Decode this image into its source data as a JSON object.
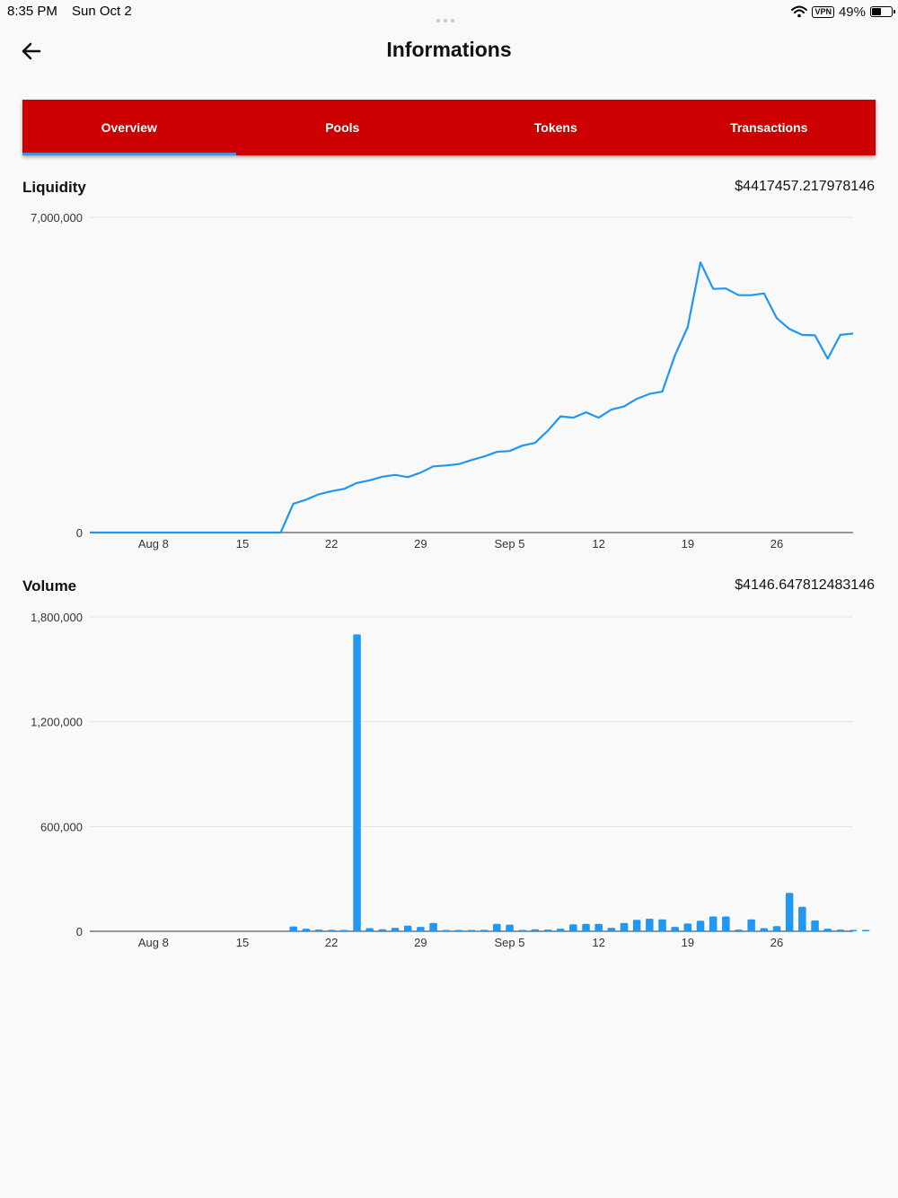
{
  "status_bar": {
    "time": "8:35 PM",
    "date": "Sun Oct 2",
    "vpn": "VPN",
    "battery": "49%",
    "battery_level": 0.49,
    "icons": [
      "wifi-icon",
      "vpn-icon",
      "battery-icon"
    ]
  },
  "header": {
    "title": "Informations",
    "back_icon": "arrow-left-icon"
  },
  "tabs": [
    {
      "label": "Overview",
      "active": true
    },
    {
      "label": "Pools",
      "active": false
    },
    {
      "label": "Tokens",
      "active": false
    },
    {
      "label": "Transactions",
      "active": false
    }
  ],
  "colors": {
    "tab_bar": "#cc0000",
    "tab_indicator": "#4a90d9",
    "series": "#2196f3"
  },
  "liquidity": {
    "title": "Liquidity",
    "value": "$4417457.217978146"
  },
  "volume": {
    "title": "Volume",
    "value": "$4146.647812483146"
  },
  "chart_data": [
    {
      "type": "line",
      "title": "Liquidity",
      "ylim": [
        0,
        7000000
      ],
      "y_ticks": [
        "0",
        "7,000,000"
      ],
      "y_tick_values": [
        0,
        7000000
      ],
      "x_ticks": [
        "Aug 8",
        "15",
        "22",
        "29",
        "Sep 5",
        "12",
        "19",
        "26"
      ],
      "x_tick_dates": [
        "2022-08-08",
        "2022-08-15",
        "2022-08-22",
        "2022-08-29",
        "2022-09-05",
        "2022-09-12",
        "2022-09-19",
        "2022-09-26"
      ],
      "x_range": [
        "2022-08-03",
        "2022-10-02"
      ],
      "grid": true,
      "points": [
        [
          "2022-08-03",
          0
        ],
        [
          "2022-08-18",
          0
        ],
        [
          "2022-08-19",
          640000
        ],
        [
          "2022-08-20",
          730000
        ],
        [
          "2022-08-21",
          850000
        ],
        [
          "2022-08-22",
          920000
        ],
        [
          "2022-08-23",
          970000
        ],
        [
          "2022-08-24",
          1100000
        ],
        [
          "2022-08-25",
          1160000
        ],
        [
          "2022-08-26",
          1240000
        ],
        [
          "2022-08-27",
          1280000
        ],
        [
          "2022-08-28",
          1230000
        ],
        [
          "2022-08-29",
          1330000
        ],
        [
          "2022-08-30",
          1470000
        ],
        [
          "2022-08-31",
          1490000
        ],
        [
          "2022-09-01",
          1520000
        ],
        [
          "2022-09-02",
          1610000
        ],
        [
          "2022-09-03",
          1690000
        ],
        [
          "2022-09-04",
          1790000
        ],
        [
          "2022-09-05",
          1810000
        ],
        [
          "2022-09-06",
          1930000
        ],
        [
          "2022-09-07",
          1990000
        ],
        [
          "2022-09-08",
          2260000
        ],
        [
          "2022-09-09",
          2580000
        ],
        [
          "2022-09-10",
          2550000
        ],
        [
          "2022-09-11",
          2670000
        ],
        [
          "2022-09-12",
          2550000
        ],
        [
          "2022-09-13",
          2730000
        ],
        [
          "2022-09-14",
          2800000
        ],
        [
          "2022-09-15",
          2970000
        ],
        [
          "2022-09-16",
          3080000
        ],
        [
          "2022-09-17",
          3130000
        ],
        [
          "2022-09-18",
          3940000
        ],
        [
          "2022-09-19",
          4560000
        ],
        [
          "2022-09-20",
          6000000
        ],
        [
          "2022-09-21",
          5410000
        ],
        [
          "2022-09-22",
          5420000
        ],
        [
          "2022-09-23",
          5270000
        ],
        [
          "2022-09-24",
          5270000
        ],
        [
          "2022-09-25",
          5310000
        ],
        [
          "2022-09-26",
          4760000
        ],
        [
          "2022-09-27",
          4520000
        ],
        [
          "2022-09-28",
          4390000
        ],
        [
          "2022-09-29",
          4380000
        ],
        [
          "2022-09-30",
          3860000
        ],
        [
          "2022-10-01",
          4390000
        ],
        [
          "2022-10-02",
          4420000
        ]
      ]
    },
    {
      "type": "bar",
      "title": "Volume",
      "ylim": [
        0,
        1800000
      ],
      "y_ticks": [
        "0",
        "600,000",
        "1,200,000",
        "1,800,000"
      ],
      "y_tick_values": [
        0,
        600000,
        1200000,
        1800000
      ],
      "x_ticks": [
        "Aug 8",
        "15",
        "22",
        "29",
        "Sep 5",
        "12",
        "19",
        "26"
      ],
      "x_tick_dates": [
        "2022-08-08",
        "2022-08-15",
        "2022-08-22",
        "2022-08-29",
        "2022-09-05",
        "2022-09-12",
        "2022-09-19",
        "2022-09-26"
      ],
      "x_range": [
        "2022-08-03",
        "2022-10-02"
      ],
      "grid": true,
      "bars": [
        [
          "2022-08-19",
          28000
        ],
        [
          "2022-08-20",
          15000
        ],
        [
          "2022-08-21",
          10000
        ],
        [
          "2022-08-22",
          8000
        ],
        [
          "2022-08-23",
          6000
        ],
        [
          "2022-08-24",
          1700000
        ],
        [
          "2022-08-25",
          18000
        ],
        [
          "2022-08-26",
          12000
        ],
        [
          "2022-08-27",
          20000
        ],
        [
          "2022-08-28",
          32000
        ],
        [
          "2022-08-29",
          25000
        ],
        [
          "2022-08-30",
          48000
        ],
        [
          "2022-08-31",
          3000
        ],
        [
          "2022-09-01",
          3000
        ],
        [
          "2022-09-02",
          2000
        ],
        [
          "2022-09-03",
          8000
        ],
        [
          "2022-09-04",
          42000
        ],
        [
          "2022-09-05",
          38000
        ],
        [
          "2022-09-06",
          5000
        ],
        [
          "2022-09-07",
          12000
        ],
        [
          "2022-09-08",
          10000
        ],
        [
          "2022-09-09",
          15000
        ],
        [
          "2022-09-10",
          40000
        ],
        [
          "2022-09-11",
          42000
        ],
        [
          "2022-09-12",
          42000
        ],
        [
          "2022-09-13",
          20000
        ],
        [
          "2022-09-14",
          48000
        ],
        [
          "2022-09-15",
          66000
        ],
        [
          "2022-09-16",
          72000
        ],
        [
          "2022-09-17",
          68000
        ],
        [
          "2022-09-18",
          25000
        ],
        [
          "2022-09-19",
          44000
        ],
        [
          "2022-09-20",
          60000
        ],
        [
          "2022-09-21",
          85000
        ],
        [
          "2022-09-22",
          85000
        ],
        [
          "2022-09-23",
          10000
        ],
        [
          "2022-09-24",
          68000
        ],
        [
          "2022-09-25",
          18000
        ],
        [
          "2022-09-26",
          30000
        ],
        [
          "2022-09-27",
          220000
        ],
        [
          "2022-09-28",
          140000
        ],
        [
          "2022-09-29",
          62000
        ],
        [
          "2022-09-30",
          15000
        ],
        [
          "2022-10-01",
          10000
        ],
        [
          "2022-10-02",
          3000
        ],
        [
          "2022-10-03",
          3000
        ]
      ]
    }
  ]
}
